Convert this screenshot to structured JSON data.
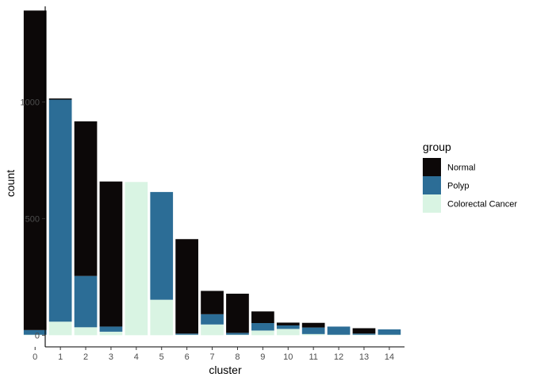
{
  "chart_data": {
    "type": "bar",
    "stacked": true,
    "xlabel": "cluster",
    "ylabel": "count",
    "ylim": [
      -50,
      1410
    ],
    "yticks": [
      0,
      500,
      1000
    ],
    "grid": false,
    "legend_position": "right",
    "categories": [
      "0",
      "1",
      "2",
      "3",
      "4",
      "5",
      "6",
      "7",
      "8",
      "9",
      "10",
      "11",
      "12",
      "13",
      "14"
    ],
    "legend": {
      "title": "group",
      "entries": [
        "Normal",
        "Polyp",
        "Colorectal Cancer"
      ]
    },
    "series": [
      {
        "name": "Colorectal Cancer",
        "color": "#d9f4e3",
        "values": [
          2,
          58,
          34,
          15,
          657,
          152,
          2,
          46,
          2,
          20,
          27,
          5,
          2,
          2,
          2
        ]
      },
      {
        "name": "Polyp",
        "color": "#2c6d96",
        "values": [
          20,
          952,
          220,
          22,
          0,
          462,
          5,
          44,
          8,
          32,
          15,
          28,
          35,
          5,
          23
        ]
      },
      {
        "name": "Normal",
        "color": "#0c0808",
        "values": [
          1370,
          5,
          663,
          622,
          0,
          0,
          405,
          100,
          168,
          50,
          12,
          20,
          0,
          23,
          0
        ]
      }
    ]
  }
}
